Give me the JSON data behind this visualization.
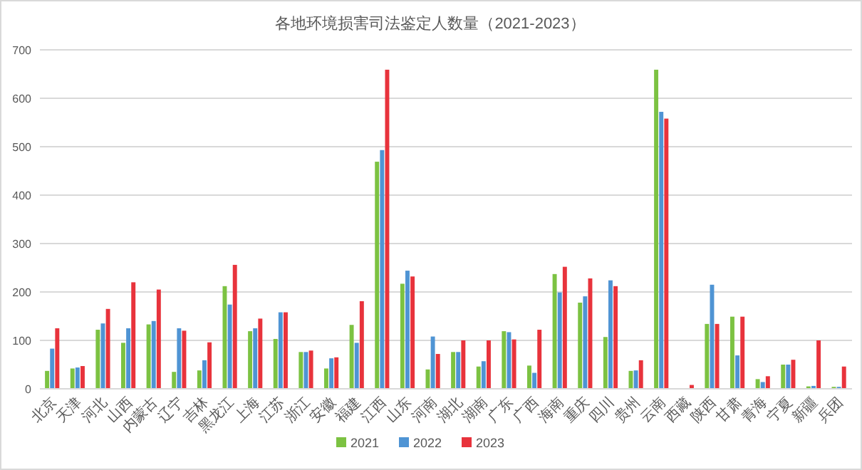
{
  "chart_data": {
    "type": "bar",
    "title": "各地环境损害司法鉴定人数量（2021-2023）",
    "categories": [
      "北京",
      "天津",
      "河北",
      "山西",
      "内蒙古",
      "辽宁",
      "吉林",
      "黑龙江",
      "上海",
      "江苏",
      "浙江",
      "安徽",
      "福建",
      "江西",
      "山东",
      "河南",
      "湖北",
      "湖南",
      "广东",
      "广西",
      "海南",
      "重庆",
      "四川",
      "贵州",
      "云南",
      "西藏",
      "陕西",
      "甘肃",
      "青海",
      "宁夏",
      "新疆",
      "兵团"
    ],
    "series": [
      {
        "name": "2021",
        "color": "#7cc242",
        "values": [
          37,
          42,
          122,
          95,
          133,
          35,
          38,
          212,
          119,
          103,
          76,
          42,
          132,
          469,
          217,
          40,
          76,
          46,
          119,
          48,
          237,
          178,
          107,
          37,
          659,
          0,
          134,
          149,
          20,
          50,
          5,
          4
        ]
      },
      {
        "name": "2022",
        "color": "#4f94d4",
        "values": [
          83,
          44,
          135,
          125,
          140,
          125,
          59,
          174,
          125,
          158,
          76,
          63,
          95,
          493,
          244,
          108,
          76,
          57,
          117,
          33,
          199,
          191,
          224,
          38,
          572,
          0,
          215,
          69,
          14,
          50,
          6,
          4
        ]
      },
      {
        "name": "2023",
        "color": "#e8333c",
        "values": [
          125,
          47,
          165,
          220,
          205,
          120,
          96,
          256,
          145,
          158,
          79,
          65,
          181,
          659,
          232,
          72,
          100,
          100,
          102,
          122,
          252,
          228,
          212,
          59,
          558,
          8,
          134,
          149,
          26,
          60,
          100,
          46
        ]
      }
    ],
    "ylim": [
      0,
      700
    ],
    "yticks": [
      0,
      100,
      200,
      300,
      400,
      500,
      600,
      700
    ],
    "grid": "y",
    "legend": "bottom"
  }
}
